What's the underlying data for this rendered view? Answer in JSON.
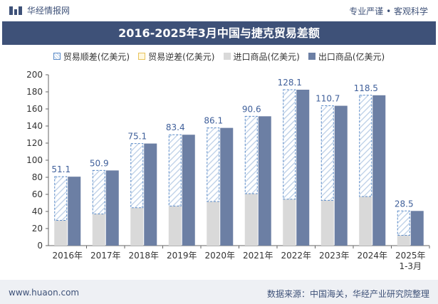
{
  "header": {
    "brand": "华经情报网",
    "tagline": "专业严谨 • 客观科学"
  },
  "footer": {
    "url": "www.huaon.com",
    "source": "数据来源：中国海关，华经产业研究院整理"
  },
  "colors": {
    "brand": "#3e5178",
    "export": "#6c7fa4",
    "import": "#d9d9d9",
    "surplus_border": "#5b8bc8",
    "deficit_border": "#e8c35a",
    "label": "#3f5f9a"
  },
  "chart_data": {
    "type": "bar",
    "title": "2016-2025年3月中国与捷克贸易差额",
    "categories": [
      "2016年",
      "2017年",
      "2018年",
      "2019年",
      "2020年",
      "2021年",
      "2022年",
      "2023年",
      "2024年",
      "2025年\n1-3月"
    ],
    "series": [
      {
        "name": "贸易顺差(亿美元)",
        "values": [
          51.1,
          50.9,
          75.1,
          83.4,
          86.1,
          90.6,
          128.1,
          110.7,
          118.5,
          28.5
        ]
      },
      {
        "name": "贸易逆差(亿美元)",
        "values": [
          0,
          0,
          0,
          0,
          0,
          0,
          0,
          0,
          0,
          0
        ]
      },
      {
        "name": "进口商品(亿美元)",
        "values": [
          29.6,
          37.1,
          44.4,
          46.4,
          51.7,
          60.8,
          54.4,
          53.0,
          57.5,
          12.1
        ]
      },
      {
        "name": "出口商品(亿美元)",
        "values": [
          80.7,
          88.0,
          119.5,
          129.8,
          137.8,
          151.4,
          182.5,
          163.7,
          176.0,
          40.6
        ]
      }
    ],
    "ylim": [
      0,
      200
    ],
    "yticks": [
      0,
      20,
      40,
      60,
      80,
      100,
      120,
      140,
      160,
      180,
      200
    ],
    "grid": false,
    "legend": "top-center"
  }
}
